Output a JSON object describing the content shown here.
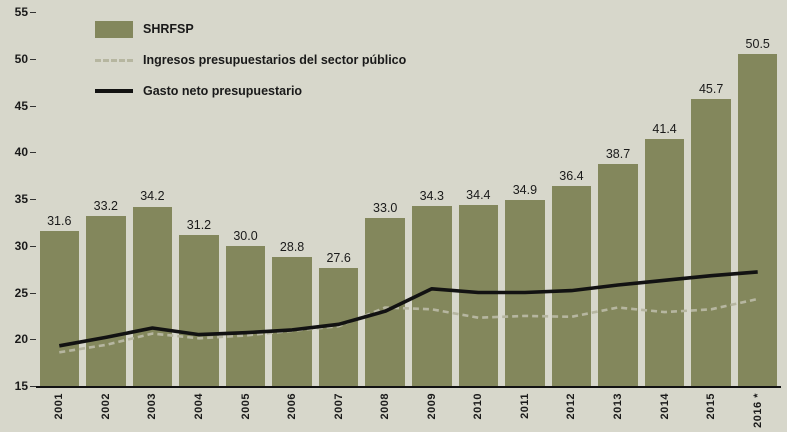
{
  "chart_data": {
    "type": "bar",
    "title": "",
    "xlabel": "",
    "ylabel": "",
    "categories": [
      "2001",
      "2002",
      "2003",
      "2004",
      "2005",
      "2006",
      "2007",
      "2008",
      "2009",
      "2010",
      "2011",
      "2012",
      "2013",
      "2014",
      "2015",
      "2016 *"
    ],
    "series": [
      {
        "name": "SHRFSP",
        "kind": "bar",
        "values": [
          31.6,
          33.2,
          34.2,
          31.2,
          30.0,
          28.8,
          27.6,
          33.0,
          34.3,
          34.4,
          34.9,
          36.4,
          38.7,
          41.4,
          45.7,
          50.5
        ]
      },
      {
        "name": "Ingresos presupuestarios del sector público",
        "kind": "line-dashed",
        "values": [
          18.6,
          19.4,
          20.6,
          20.1,
          20.4,
          20.9,
          21.4,
          23.4,
          23.2,
          22.3,
          22.5,
          22.4,
          23.4,
          22.9,
          23.2,
          24.3
        ]
      },
      {
        "name": "Gasto neto presupuestario",
        "kind": "line",
        "values": [
          19.3,
          20.2,
          21.2,
          20.5,
          20.7,
          21.0,
          21.6,
          23.0,
          25.4,
          25.0,
          25.0,
          25.2,
          25.8,
          26.3,
          26.8,
          27.2
        ]
      }
    ],
    "ylim": [
      15,
      55
    ],
    "yticks": [
      15,
      20,
      25,
      30,
      35,
      40,
      45,
      50,
      55
    ],
    "grid": false,
    "legend_position": "top-left",
    "value_labels_decimals": 1,
    "colors": {
      "background": "#d7d7cb",
      "bar": "#83875c",
      "dashed_line": "#b6b6a0",
      "solid_line": "#121212",
      "text": "#1a1a1a"
    }
  }
}
